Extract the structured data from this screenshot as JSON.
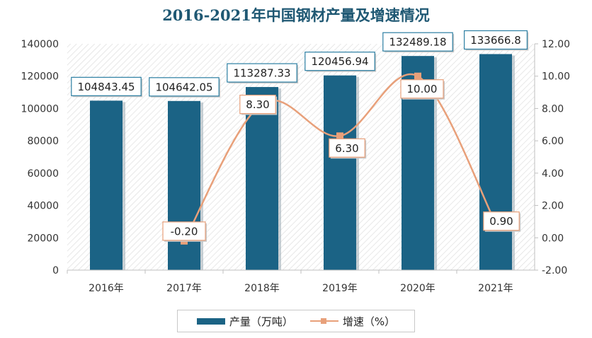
{
  "chart_data": {
    "type": "bar",
    "title": "2016-2021年中国钢材产量及增速情况",
    "categories": [
      "2016年",
      "2017年",
      "2018年",
      "2019年",
      "2020年",
      "2021年"
    ],
    "series": [
      {
        "name": "产量（万吨）",
        "type": "bar",
        "axis": "left",
        "values": [
          104843.45,
          104642.05,
          113287.33,
          120456.94,
          132489.18,
          133666.8
        ],
        "labels": [
          "104843.45",
          "104642.05",
          "113287.33",
          "120456.94",
          "132489.18",
          "133666.8"
        ]
      },
      {
        "name": "增速（%）",
        "type": "line",
        "axis": "right",
        "values": [
          null,
          -0.2,
          8.3,
          6.3,
          10.0,
          0.9
        ],
        "labels": [
          "",
          "-0.20",
          "8.30",
          "6.30",
          "10.00",
          "0.90"
        ]
      }
    ],
    "left_axis": {
      "ylim": [
        0,
        140000
      ],
      "ticks": [
        "0",
        "20000",
        "40000",
        "60000",
        "80000",
        "100000",
        "120000",
        "140000"
      ]
    },
    "right_axis": {
      "ylim": [
        -2,
        12
      ],
      "ticks": [
        "-2.00",
        "0.00",
        "2.00",
        "4.00",
        "6.00",
        "8.00",
        "10.00",
        "12.00"
      ]
    },
    "grid": false,
    "legend": "bottom",
    "colors": {
      "bar": "#1b6385",
      "line": "#e8a07a",
      "title": "#1f5873",
      "label_border": "#2c7fa3"
    }
  }
}
